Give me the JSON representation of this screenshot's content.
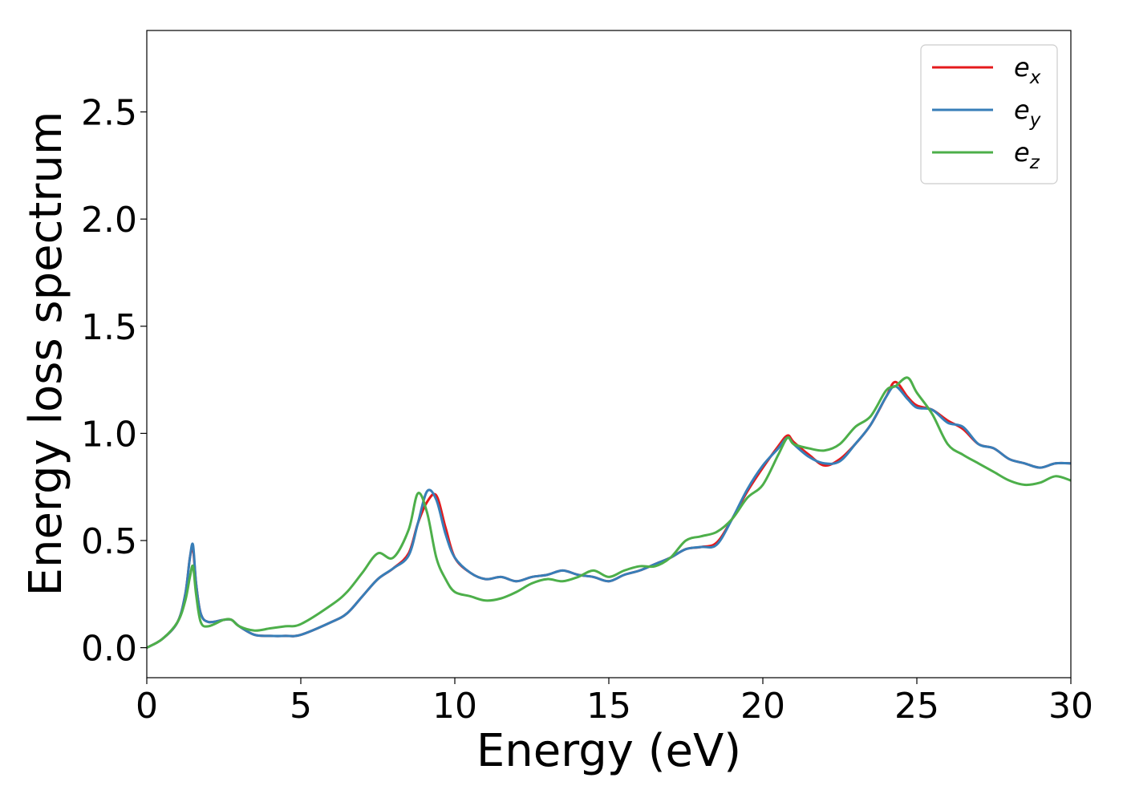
{
  "chart_data": {
    "type": "line",
    "title": "",
    "xlabel": "Energy (eV)",
    "ylabel": "Energy loss spectrum",
    "xlim": [
      0,
      30
    ],
    "ylim": [
      -0.14,
      2.88
    ],
    "xticks": [
      0,
      5,
      10,
      15,
      20,
      25,
      30
    ],
    "xtick_labels": [
      "0",
      "5",
      "10",
      "15",
      "20",
      "25",
      "30"
    ],
    "yticks": [
      0.0,
      0.5,
      1.0,
      1.5,
      2.0,
      2.5
    ],
    "ytick_labels": [
      "0.0",
      "0.5",
      "1.0",
      "1.5",
      "2.0",
      "2.5"
    ],
    "grid": false,
    "legend_position": "top-right",
    "x": [
      0,
      0.5,
      1,
      1.25,
      1.4,
      1.5,
      1.6,
      1.75,
      2,
      2.5,
      2.75,
      3,
      3.5,
      4,
      4.5,
      5,
      6,
      6.5,
      7,
      7.5,
      8,
      8.5,
      8.8,
      9.1,
      9.4,
      9.7,
      10,
      10.5,
      11,
      11.5,
      12,
      12.5,
      13,
      13.5,
      14,
      14.5,
      15,
      15.5,
      16,
      16.5,
      17,
      17.5,
      18,
      18.5,
      19,
      19.5,
      20,
      20.5,
      20.8,
      21,
      21.5,
      22,
      22.5,
      23,
      23.5,
      24,
      24.3,
      24.7,
      25,
      25.5,
      26,
      26.5,
      27,
      27.5,
      28,
      28.5,
      29,
      29.5,
      30
    ],
    "series": [
      {
        "name": "e_x",
        "color": "#e41a1c",
        "values": [
          0.0,
          0.04,
          0.12,
          0.25,
          0.42,
          0.46,
          0.3,
          0.16,
          0.12,
          0.13,
          0.13,
          0.1,
          0.06,
          0.055,
          0.055,
          0.06,
          0.12,
          0.16,
          0.24,
          0.32,
          0.37,
          0.44,
          0.58,
          0.68,
          0.71,
          0.56,
          0.42,
          0.35,
          0.32,
          0.33,
          0.31,
          0.33,
          0.34,
          0.36,
          0.34,
          0.33,
          0.31,
          0.34,
          0.36,
          0.39,
          0.42,
          0.46,
          0.47,
          0.49,
          0.6,
          0.73,
          0.84,
          0.94,
          0.99,
          0.96,
          0.9,
          0.85,
          0.88,
          0.95,
          1.04,
          1.17,
          1.24,
          1.17,
          1.13,
          1.11,
          1.06,
          1.02,
          0.95,
          0.93,
          0.88,
          0.86,
          0.84,
          0.86,
          0.86
        ]
      },
      {
        "name": "e_y",
        "color": "#377eb8",
        "values": [
          0.0,
          0.04,
          0.12,
          0.25,
          0.42,
          0.48,
          0.3,
          0.16,
          0.12,
          0.13,
          0.13,
          0.1,
          0.06,
          0.055,
          0.055,
          0.06,
          0.12,
          0.16,
          0.24,
          0.32,
          0.37,
          0.43,
          0.58,
          0.73,
          0.69,
          0.53,
          0.42,
          0.35,
          0.32,
          0.33,
          0.31,
          0.33,
          0.34,
          0.36,
          0.34,
          0.33,
          0.31,
          0.34,
          0.36,
          0.39,
          0.42,
          0.46,
          0.47,
          0.48,
          0.6,
          0.74,
          0.85,
          0.93,
          0.98,
          0.95,
          0.89,
          0.86,
          0.87,
          0.95,
          1.04,
          1.17,
          1.22,
          1.16,
          1.12,
          1.11,
          1.05,
          1.03,
          0.95,
          0.93,
          0.88,
          0.86,
          0.84,
          0.86,
          0.86
        ]
      },
      {
        "name": "e_z",
        "color": "#4daf4a",
        "values": [
          0.0,
          0.04,
          0.12,
          0.22,
          0.33,
          0.38,
          0.25,
          0.12,
          0.1,
          0.13,
          0.13,
          0.1,
          0.08,
          0.09,
          0.1,
          0.11,
          0.2,
          0.26,
          0.35,
          0.44,
          0.42,
          0.55,
          0.72,
          0.63,
          0.42,
          0.32,
          0.26,
          0.24,
          0.22,
          0.23,
          0.26,
          0.3,
          0.32,
          0.31,
          0.33,
          0.36,
          0.33,
          0.36,
          0.38,
          0.38,
          0.42,
          0.5,
          0.52,
          0.54,
          0.6,
          0.7,
          0.76,
          0.9,
          0.98,
          0.95,
          0.93,
          0.92,
          0.95,
          1.03,
          1.08,
          1.2,
          1.22,
          1.26,
          1.19,
          1.09,
          0.95,
          0.9,
          0.86,
          0.82,
          0.78,
          0.76,
          0.77,
          0.8,
          0.78
        ]
      }
    ]
  },
  "legend": {
    "items": [
      {
        "base": "e",
        "sub": "x",
        "color": "#e41a1c"
      },
      {
        "base": "e",
        "sub": "y",
        "color": "#377eb8"
      },
      {
        "base": "e",
        "sub": "z",
        "color": "#4daf4a"
      }
    ]
  }
}
